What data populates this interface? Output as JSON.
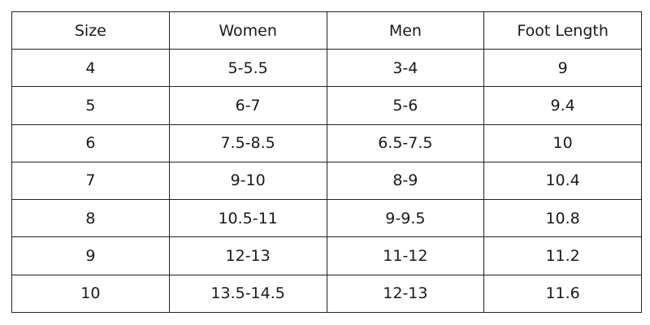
{
  "table": {
    "header": [
      "Size",
      "Women",
      "Men",
      "Foot Length"
    ],
    "rows": [
      [
        "4",
        "5-5.5",
        "3-4",
        "9"
      ],
      [
        "5",
        "6-7",
        "5-6",
        "9.4"
      ],
      [
        "6",
        "7.5-8.5",
        "6.5-7.5",
        "10"
      ],
      [
        "7",
        "9-10",
        "8-9",
        "10.4"
      ],
      [
        "8",
        "10.5-11",
        "9-9.5",
        "10.8"
      ],
      [
        "9",
        "12-13",
        "11-12",
        "11.2"
      ],
      [
        "10",
        "13.5-14.5",
        "12-13",
        "11.6"
      ]
    ]
  }
}
